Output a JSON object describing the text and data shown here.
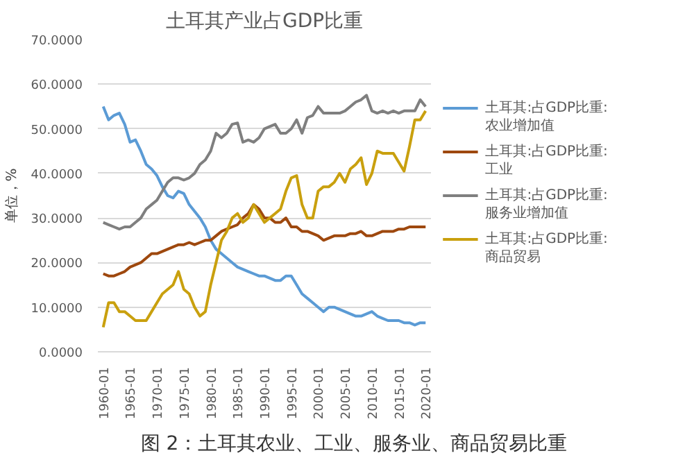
{
  "chart_data": {
    "type": "line",
    "title": "土耳其产业占GDP比重",
    "ylabel": "单位，%",
    "categories": [
      "1960-01",
      null,
      null,
      null,
      null,
      "1965-01",
      null,
      null,
      null,
      null,
      "1970-01",
      null,
      null,
      null,
      null,
      "1975-01",
      null,
      null,
      null,
      null,
      "1980-01",
      null,
      null,
      null,
      null,
      "1985-01",
      null,
      null,
      null,
      null,
      "1990-01",
      null,
      null,
      null,
      null,
      "1995-01",
      null,
      null,
      null,
      null,
      "2000-01",
      null,
      null,
      null,
      null,
      "2005-01",
      null,
      null,
      null,
      null,
      "2010-01",
      null,
      null,
      null,
      null,
      "2015-01",
      null,
      null,
      null,
      null,
      "2020-01"
    ],
    "series": [
      {
        "name": "土耳其:占GDP比重:农业增加值",
        "color": "#5b9bd5",
        "values": [
          55,
          52,
          53,
          53.5,
          51,
          47,
          47.5,
          45,
          42,
          41,
          39.5,
          37,
          35,
          34.5,
          36,
          35.5,
          33,
          31.5,
          30,
          28,
          25,
          23,
          22,
          21,
          20,
          19,
          18.5,
          18,
          17.5,
          17,
          17,
          16.5,
          16,
          16,
          17,
          17,
          15,
          13,
          12,
          11,
          10,
          9,
          10,
          10,
          9.5,
          9,
          8.5,
          8,
          8,
          8.5,
          9,
          8,
          7.5,
          7,
          7,
          7,
          6.5,
          6.5,
          6,
          6.5,
          6.5
        ]
      },
      {
        "name": "土耳其:占GDP比重:工业",
        "color": "#9e480e",
        "values": [
          17.5,
          17,
          17,
          17.5,
          18,
          19,
          19.5,
          20,
          21,
          22,
          22,
          22.5,
          23,
          23.5,
          24,
          24,
          24.5,
          24,
          24.5,
          25,
          25,
          26,
          27,
          27.5,
          28,
          28.5,
          30,
          31,
          33,
          32,
          30,
          30,
          29,
          29,
          30,
          28,
          28,
          27,
          27,
          26.5,
          26,
          25,
          25.5,
          26,
          26,
          26,
          26.5,
          26.5,
          27,
          26,
          26,
          26.5,
          27,
          27,
          27,
          27.5,
          27.5,
          28,
          28,
          28,
          28
        ]
      },
      {
        "name": "土耳其:占GDP比重:服务业增加值",
        "color": "#7f7f7f",
        "values": [
          29,
          28.5,
          28,
          27.5,
          28,
          28,
          29,
          30,
          32,
          33,
          34,
          36,
          38,
          39,
          39,
          38.5,
          39,
          40,
          42,
          43,
          45,
          49,
          48,
          49,
          51,
          51.3,
          47,
          47.5,
          47,
          48,
          50,
          50.5,
          51,
          49,
          49,
          50,
          52,
          49,
          52.5,
          53,
          55,
          53.5,
          53.5,
          53.5,
          53.5,
          54,
          55,
          56,
          56.5,
          57.5,
          54,
          53.5,
          54,
          53.5,
          54,
          53.5,
          54,
          54,
          54,
          56.5,
          55
        ]
      },
      {
        "name": "土耳其:占GDP比重:商品贸易",
        "color": "#c9a00e",
        "values": [
          5.5,
          11,
          11,
          9,
          9,
          8,
          7,
          7,
          7,
          9,
          11,
          13,
          14,
          15,
          18,
          14,
          13,
          10,
          8,
          9,
          15,
          20,
          25,
          27,
          30,
          31,
          29,
          30,
          33,
          31,
          29,
          30,
          31,
          32,
          36,
          39,
          39.5,
          33,
          30,
          30,
          36,
          37,
          37,
          38,
          40,
          38,
          41,
          42,
          43.5,
          37.5,
          40,
          45,
          44.5,
          44.5,
          44.5,
          42.5,
          40.5,
          46,
          52,
          52,
          54
        ]
      }
    ],
    "ylim": [
      0,
      70
    ],
    "yticks": [
      {
        "value": 0,
        "label": "0.0000"
      },
      {
        "value": 10,
        "label": "10.0000"
      },
      {
        "value": 20,
        "label": "20.0000"
      },
      {
        "value": 30,
        "label": "30.0000"
      },
      {
        "value": 40,
        "label": "40.0000"
      },
      {
        "value": 50,
        "label": "50.0000"
      },
      {
        "value": 60,
        "label": "60.0000"
      },
      {
        "value": 70,
        "label": "70.0000"
      }
    ],
    "grid": "y",
    "legend": "right",
    "line_style": "solid",
    "annotations": [
      "图 2：土耳其农业、工业、服务业、商品贸易比重"
    ]
  }
}
